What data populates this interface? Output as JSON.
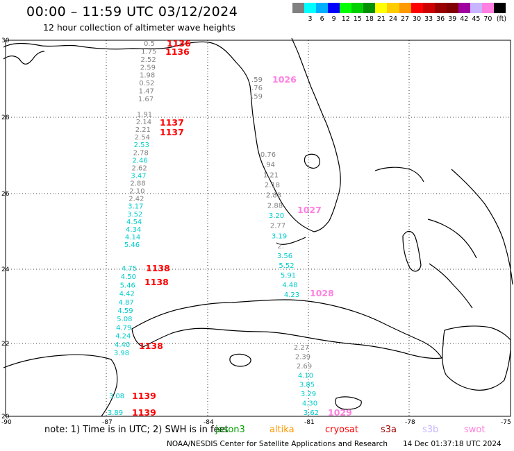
{
  "title": "00:00  –  11:59 UTC 03/12/2024",
  "subtitle": "12 hour collection of altimeter wave heights",
  "legend": {
    "unit_label": "(ft)",
    "entries": [
      {
        "label": "",
        "color": "#808080"
      },
      {
        "label": "3",
        "color": "#00ffff"
      },
      {
        "label": "6",
        "color": "#00b0ff"
      },
      {
        "label": "9",
        "color": "#0000ff"
      },
      {
        "label": "12",
        "color": "#00ff00"
      },
      {
        "label": "15",
        "color": "#00d000"
      },
      {
        "label": "18",
        "color": "#009000"
      },
      {
        "label": "21",
        "color": "#ffff00"
      },
      {
        "label": "24",
        "color": "#ffcc00"
      },
      {
        "label": "27",
        "color": "#ff9900"
      },
      {
        "label": "30",
        "color": "#ff0000"
      },
      {
        "label": "33",
        "color": "#cc0000"
      },
      {
        "label": "36",
        "color": "#990000"
      },
      {
        "label": "39",
        "color": "#800000"
      },
      {
        "label": "42",
        "color": "#a000a0"
      },
      {
        "label": "45",
        "color": "#c8b4ff"
      },
      {
        "label": "70",
        "color": "#ff80e0"
      },
      {
        "label": "",
        "color": "#000000"
      }
    ]
  },
  "map": {
    "lat_labels": [
      "30",
      "28",
      "26",
      "24",
      "22",
      "20"
    ],
    "lon_labels": [
      "-90",
      "-87",
      "-84",
      "-81",
      "-78",
      "-75"
    ]
  },
  "tracks": [
    {
      "name": "track-1136",
      "label": "1136",
      "label2": "1136",
      "color": "#ff0000",
      "points": [
        {
          "v": "0.5",
          "c": "#808080"
        },
        {
          "v": "1.75",
          "c": "#808080"
        },
        {
          "v": "2.52",
          "c": "#808080"
        },
        {
          "v": "2.59",
          "c": "#808080"
        },
        {
          "v": "1.98",
          "c": "#808080"
        },
        {
          "v": "0.52",
          "c": "#808080"
        },
        {
          "v": "1.47",
          "c": "#808080"
        },
        {
          "v": "1.67",
          "c": "#808080"
        }
      ]
    },
    {
      "name": "track-1137",
      "label": "1137",
      "label2": "1137",
      "color": "#ff0000",
      "points": [
        {
          "v": "1.91",
          "c": "#808080"
        },
        {
          "v": "2.14",
          "c": "#808080"
        },
        {
          "v": "2.21",
          "c": "#808080"
        },
        {
          "v": "2.54",
          "c": "#808080"
        },
        {
          "v": "2.53",
          "c": "#00cccc"
        },
        {
          "v": "2.78",
          "c": "#808080"
        },
        {
          "v": "2.46",
          "c": "#00cccc"
        },
        {
          "v": "2.62",
          "c": "#808080"
        },
        {
          "v": "3.47",
          "c": "#00cccc"
        },
        {
          "v": "2.88",
          "c": "#808080"
        },
        {
          "v": "2.10",
          "c": "#808080"
        },
        {
          "v": "2.42",
          "c": "#808080"
        },
        {
          "v": "3.17",
          "c": "#00cccc"
        },
        {
          "v": "3.52",
          "c": "#00cccc"
        },
        {
          "v": "4.54",
          "c": "#00cccc"
        },
        {
          "v": "4.34",
          "c": "#00cccc"
        },
        {
          "v": "4.14",
          "c": "#00cccc"
        },
        {
          "v": "5.46",
          "c": "#00cccc"
        }
      ]
    },
    {
      "name": "track-1138",
      "label": "1138",
      "label2": "1138",
      "label3": "1138",
      "color": "#ff0000",
      "points": [
        {
          "v": "4.75",
          "c": "#00cccc"
        },
        {
          "v": "4.50",
          "c": "#00cccc"
        },
        {
          "v": "5.46",
          "c": "#00cccc"
        },
        {
          "v": "4.42",
          "c": "#00cccc"
        },
        {
          "v": "4.87",
          "c": "#00cccc"
        },
        {
          "v": "4.59",
          "c": "#00cccc"
        },
        {
          "v": "5.08",
          "c": "#00cccc"
        },
        {
          "v": "4.79",
          "c": "#00cccc"
        },
        {
          "v": "4.24",
          "c": "#00cccc"
        },
        {
          "v": "4.40",
          "c": "#00cccc"
        },
        {
          "v": "3.98",
          "c": "#00cccc"
        }
      ]
    },
    {
      "name": "track-1139",
      "label": "1139",
      "label2": "1139",
      "color": "#ff0000",
      "points": [
        {
          "v": "3.08",
          "c": "#00cccc"
        },
        {
          "v": "3.89",
          "c": "#00cccc"
        }
      ]
    },
    {
      "name": "track-1026",
      "label": "1026",
      "color": "#ff80e0",
      "points": [
        {
          "v": ".59",
          "c": "#808080"
        },
        {
          "v": ".76",
          "c": "#808080"
        },
        {
          "v": ".59",
          "c": "#808080"
        }
      ]
    },
    {
      "name": "track-1027",
      "label": "1027",
      "color": "#ff80e0",
      "points": [
        {
          "v": "0.76",
          "c": "#808080"
        },
        {
          "v": ".94",
          "c": "#808080"
        },
        {
          "v": "1.21",
          "c": "#808080"
        },
        {
          "v": "2.18",
          "c": "#808080"
        },
        {
          "v": "2.83",
          "c": "#808080"
        },
        {
          "v": "2.88",
          "c": "#808080"
        },
        {
          "v": "3.20",
          "c": "#00cccc"
        },
        {
          "v": "2.77",
          "c": "#808080"
        },
        {
          "v": "3.19",
          "c": "#00cccc"
        },
        {
          "v": "2.",
          "c": "#808080"
        }
      ]
    },
    {
      "name": "track-1028",
      "label": "1028",
      "color": "#ff80e0",
      "points": [
        {
          "v": "3.56",
          "c": "#00cccc"
        },
        {
          "v": "5.52",
          "c": "#00cccc"
        },
        {
          "v": "5.91",
          "c": "#00cccc"
        },
        {
          "v": "4.48",
          "c": "#00cccc"
        },
        {
          "v": "4.23",
          "c": "#00cccc"
        }
      ]
    },
    {
      "name": "track-1029",
      "label": "1029",
      "color": "#ff80e0",
      "points": [
        {
          "v": "2.27",
          "c": "#808080"
        },
        {
          "v": "2.39",
          "c": "#808080"
        },
        {
          "v": "2.69",
          "c": "#808080"
        },
        {
          "v": "4.10",
          "c": "#00cccc"
        },
        {
          "v": "3.85",
          "c": "#00cccc"
        },
        {
          "v": "3.29",
          "c": "#00cccc"
        },
        {
          "v": "4.30",
          "c": "#00cccc"
        },
        {
          "v": "3.62",
          "c": "#00cccc"
        }
      ]
    }
  ],
  "note": "note: 1) Time is in UTC; 2) SWH is in feet",
  "missions": [
    {
      "label": "jason3",
      "color": "#00a000"
    },
    {
      "label": "altika",
      "color": "#ff9900"
    },
    {
      "label": "cryosat",
      "color": "#ff0000"
    },
    {
      "label": "s3a",
      "color": "#990000"
    },
    {
      "label": "s3b",
      "color": "#c8b4ff"
    },
    {
      "label": "swot",
      "color": "#ff80e0"
    }
  ],
  "credit": "NOAA/NESDIS Center for Satellite Applications and Research",
  "stamp": "14 Dec 01:37:18 UTC 2024"
}
